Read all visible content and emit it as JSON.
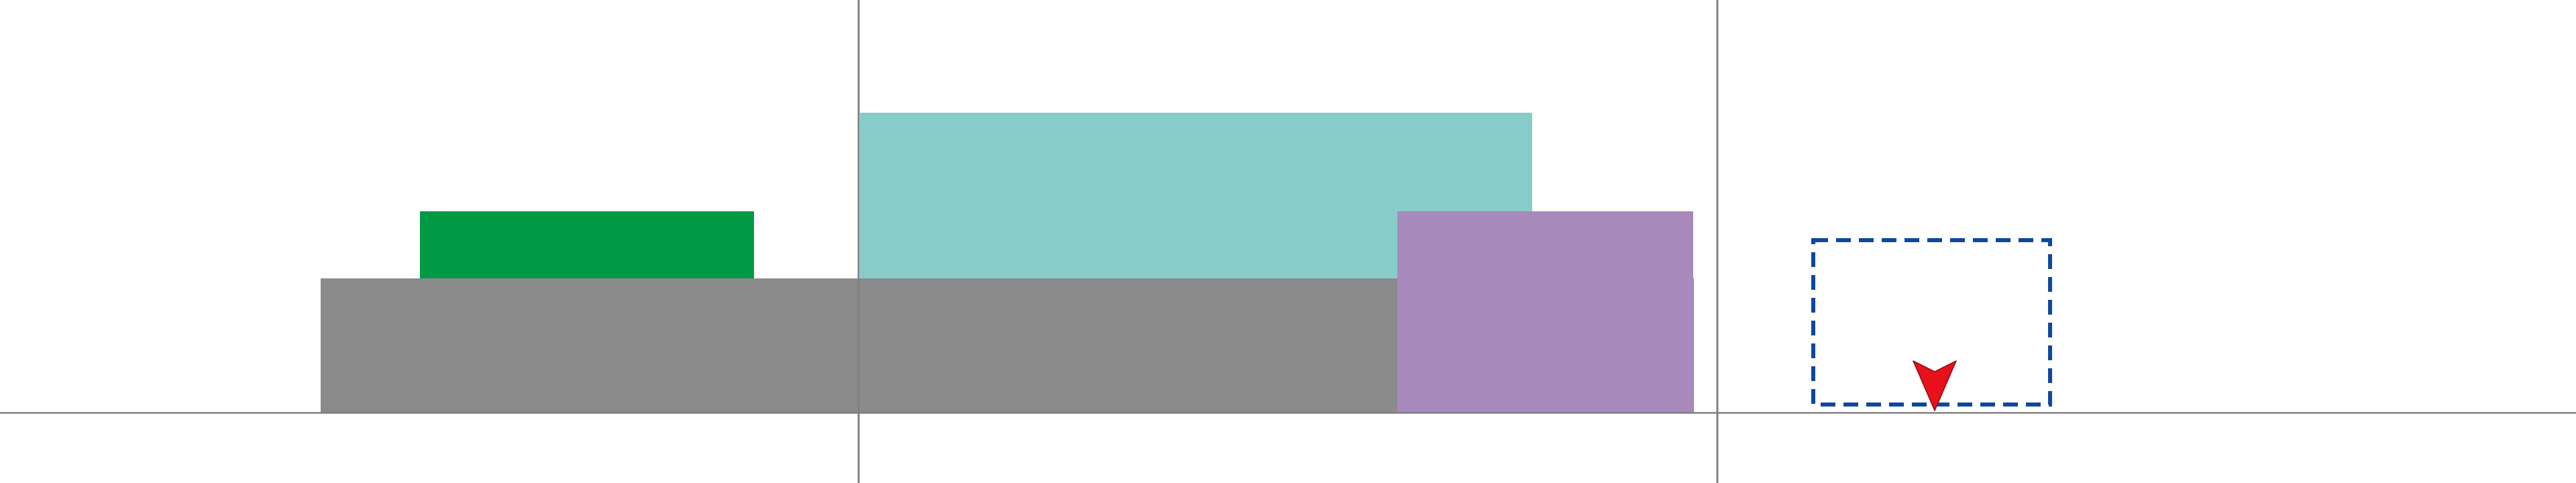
{
  "diagram": {
    "background_color": "#ffffff",
    "guide_line_color": "#808080",
    "blocks": [
      {
        "id": "gray-base",
        "color": "#8a8a8a"
      },
      {
        "id": "green-block",
        "color": "#009a44"
      },
      {
        "id": "teal-block",
        "color": "#87ccc8"
      },
      {
        "id": "purple-block",
        "color": "#a889bc"
      }
    ],
    "drop_target": {
      "border_color": "#0d47a1",
      "border_style": "dashed"
    },
    "cursor": {
      "icon": "arrow-down-icon",
      "color": "#e8101a"
    }
  }
}
